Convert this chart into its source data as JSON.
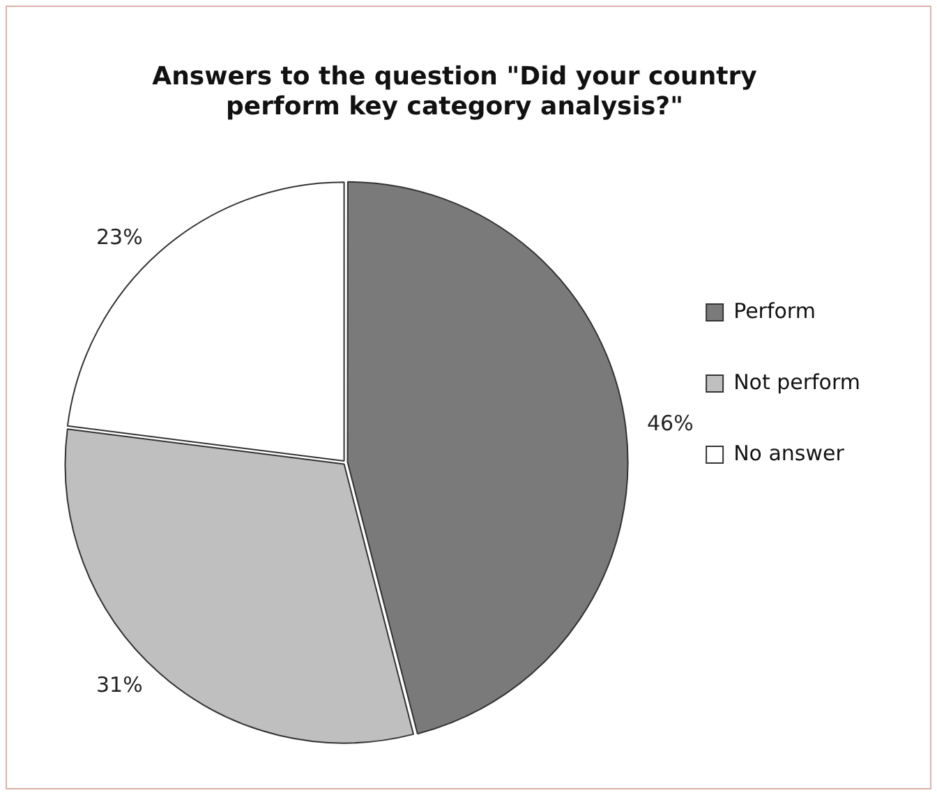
{
  "chart_data": {
    "type": "pie",
    "title": "Answers to the question \"Did your country perform key category analysis?\"",
    "categories": [
      "Perform",
      "Not perform",
      "No answer"
    ],
    "values": [
      46,
      31,
      23
    ],
    "colors": [
      "#7a7a7a",
      "#bfbfbf",
      "#ffffff"
    ],
    "value_labels": [
      "46%",
      "31%",
      "23%"
    ],
    "legend": "right"
  }
}
